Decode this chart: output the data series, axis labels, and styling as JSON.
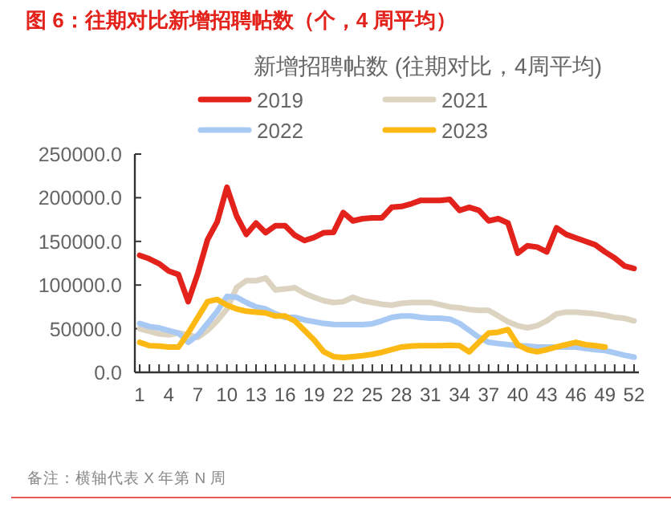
{
  "chart_data": {
    "type": "line",
    "title": "图 6：往期对比新增招聘帖数（个，4 周平均）",
    "subtitle": "新增招聘帖数 (往期对比，4周平均)",
    "annotations": [
      "备注：横轴代表 X 年第 N 周"
    ],
    "x": [
      1,
      2,
      3,
      4,
      5,
      6,
      7,
      8,
      9,
      10,
      11,
      12,
      13,
      14,
      15,
      16,
      17,
      18,
      19,
      20,
      21,
      22,
      23,
      24,
      25,
      26,
      27,
      28,
      29,
      30,
      31,
      32,
      33,
      34,
      35,
      36,
      37,
      38,
      39,
      40,
      41,
      42,
      43,
      44,
      45,
      46,
      47,
      48,
      49,
      50,
      51,
      52
    ],
    "series": [
      {
        "name": "2019",
        "color": "#e3221c",
        "values": [
          134000,
          130000,
          124500,
          116000,
          112000,
          81000,
          113500,
          152000,
          172500,
          212000,
          179000,
          158000,
          171000,
          160000,
          168000,
          168000,
          157000,
          151000,
          154500,
          160000,
          160500,
          183000,
          173500,
          176000,
          177000,
          177000,
          189000,
          190000,
          193000,
          197000,
          197000,
          197000,
          198000,
          185500,
          189000,
          185500,
          173500,
          176000,
          171000,
          136500,
          145000,
          143500,
          138000,
          165500,
          158000,
          154000,
          150000,
          146000,
          138000,
          131000,
          122000,
          119000
        ]
      },
      {
        "name": "2021",
        "color": "#dcd3c0",
        "values": [
          50000,
          47000,
          44000,
          43000,
          45000,
          43000,
          40000,
          48000,
          59000,
          72600,
          97000,
          105000,
          105000,
          108000,
          94500,
          95500,
          97000,
          90600,
          86000,
          82000,
          80000,
          81000,
          86000,
          82000,
          80000,
          78000,
          77000,
          79000,
          80000,
          80000,
          80000,
          77500,
          75000,
          74000,
          72000,
          71000,
          71000,
          64500,
          58000,
          53500,
          51000,
          53500,
          59000,
          67000,
          69000,
          69000,
          68000,
          67000,
          65500,
          63000,
          62000,
          59000
        ]
      },
      {
        "name": "2022",
        "color": "#a9c9f5",
        "values": [
          56000,
          52500,
          51000,
          48000,
          45000,
          34400,
          42600,
          56000,
          70000,
          87000,
          86000,
          80000,
          75000,
          72600,
          67000,
          63000,
          63000,
          60000,
          58000,
          56000,
          55000,
          54600,
          54600,
          54600,
          55700,
          59000,
          63000,
          64500,
          64500,
          63000,
          62000,
          62000,
          61000,
          56000,
          48000,
          40000,
          34400,
          33000,
          31700,
          30600,
          30000,
          29000,
          29000,
          29000,
          29000,
          29000,
          27300,
          26000,
          25000,
          22400,
          19700,
          17500
        ]
      },
      {
        "name": "2023",
        "color": "#fdb913",
        "values": [
          34400,
          30600,
          30000,
          29000,
          29000,
          45000,
          63000,
          81000,
          83500,
          77000,
          72600,
          70000,
          69000,
          68000,
          64500,
          64500,
          59000,
          48000,
          37000,
          23500,
          18000,
          17000,
          18000,
          19000,
          20700,
          23000,
          26000,
          29000,
          30000,
          30600,
          30600,
          30600,
          31000,
          30600,
          23500,
          34400,
          45000,
          46000,
          49000,
          31700,
          26000,
          23500,
          26000,
          29000,
          31700,
          34400,
          31700,
          30600,
          29000,
          null,
          null,
          null
        ]
      }
    ],
    "xlim": [
      0.5,
      52.5
    ],
    "xticks": [
      1,
      {
        "value": 2,
        "label": null
      },
      {
        "value": 3,
        "label": null
      },
      4,
      {
        "value": 5,
        "label": null
      },
      {
        "value": 6,
        "label": null
      },
      7,
      {
        "value": 8,
        "label": null
      },
      {
        "value": 9,
        "label": null
      },
      10,
      {
        "value": 11,
        "label": null
      },
      {
        "value": 12,
        "label": null
      },
      13,
      {
        "value": 14,
        "label": null
      },
      {
        "value": 15,
        "label": null
      },
      16,
      {
        "value": 17,
        "label": null
      },
      {
        "value": 18,
        "label": null
      },
      19,
      {
        "value": 20,
        "label": null
      },
      {
        "value": 21,
        "label": null
      },
      22,
      {
        "value": 23,
        "label": null
      },
      {
        "value": 24,
        "label": null
      },
      25,
      {
        "value": 26,
        "label": null
      },
      {
        "value": 27,
        "label": null
      },
      28,
      {
        "value": 29,
        "label": null
      },
      {
        "value": 30,
        "label": null
      },
      31,
      {
        "value": 32,
        "label": null
      },
      {
        "value": 33,
        "label": null
      },
      34,
      {
        "value": 35,
        "label": null
      },
      {
        "value": 36,
        "label": null
      },
      37,
      {
        "value": 38,
        "label": null
      },
      {
        "value": 39,
        "label": null
      },
      40,
      {
        "value": 41,
        "label": null
      },
      {
        "value": 42,
        "label": null
      },
      43,
      {
        "value": 44,
        "label": null
      },
      {
        "value": 45,
        "label": null
      },
      46,
      {
        "value": 47,
        "label": null
      },
      {
        "value": 48,
        "label": null
      },
      49,
      {
        "value": 50,
        "label": null
      },
      {
        "value": 51,
        "label": null
      },
      52
    ],
    "ylim": [
      0,
      250000
    ],
    "yticks": [
      {
        "value": 0,
        "label": "0.0"
      },
      {
        "value": 50000,
        "label": "50000.0"
      },
      {
        "value": 100000,
        "label": "100000.0"
      },
      {
        "value": 150000,
        "label": "150000.0"
      },
      {
        "value": 200000,
        "label": "200000.0"
      },
      {
        "value": 250000,
        "label": "250000.0"
      }
    ],
    "legend": "top",
    "grid": false,
    "marker": "none",
    "line_style": "solid"
  }
}
